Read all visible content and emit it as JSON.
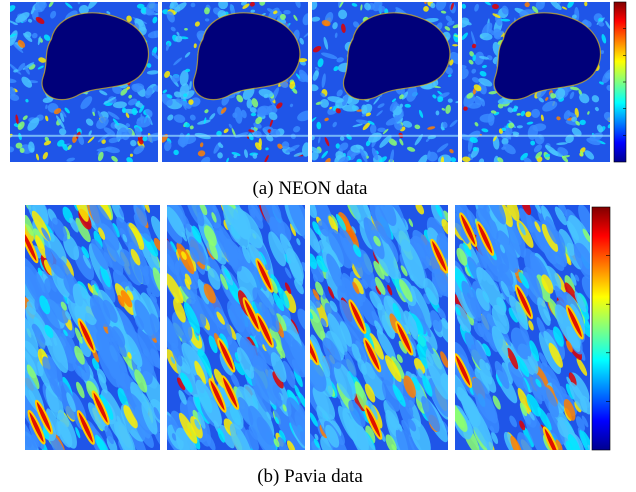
{
  "figure": {
    "panels": [
      {
        "caption": "(a) NEON data"
      },
      {
        "caption": "(b) Pavia data"
      }
    ]
  }
}
